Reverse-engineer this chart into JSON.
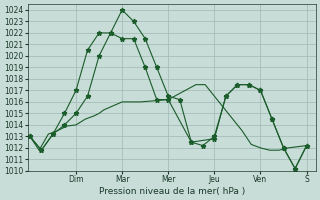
{
  "background_color": "#c8dcd8",
  "grid_color": "#a0b8b4",
  "line_color": "#1a5c2a",
  "ylim": [
    1010,
    1024.5
  ],
  "yticks": [
    1010,
    1011,
    1012,
    1013,
    1014,
    1015,
    1016,
    1017,
    1018,
    1019,
    1020,
    1021,
    1022,
    1023,
    1024
  ],
  "xlabel": "Pression niveau de la mer( hPa )",
  "day_labels": [
    "Dim",
    "Mar",
    "Mer",
    "Jeu",
    "Ven",
    "S"
  ],
  "day_positions": [
    1.0,
    2.0,
    3.0,
    4.0,
    5.0,
    6.0
  ],
  "series": [
    [
      1013.0,
      1011.8,
      1013.2,
      1013.0,
      1014.0,
      1015.0,
      1016.5,
      1017.5,
      1016.2,
      1012.5,
      1012.2,
      1013.0,
      1017.5,
      1017.5,
      1014.0,
      1012.0,
      1010.2,
      1010.2,
      1012.2
    ],
    [
      1013.0,
      1011.8,
      1013.2,
      1014.0,
      1015.0,
      1017.0,
      1020.0,
      1022.0,
      1021.5,
      1024.0,
      1023.0,
      1021.5,
      1019.0,
      1016.0,
      1012.5,
      1012.2,
      1013.0,
      1016.5,
      1017.5,
      1017.5,
      1014.5,
      1012.0,
      1010.2,
      1010.2,
      1012.2
    ],
    [
      1013.0,
      1011.8,
      1013.2,
      1014.0,
      1015.0,
      1017.0,
      1020.0,
      1022.0,
      1021.5,
      1024.0,
      1023.0,
      1021.5,
      1019.0,
      1016.0,
      1012.5,
      1012.2,
      1013.0,
      1016.5,
      1017.5,
      1017.5,
      1014.5,
      1012.0,
      1010.2,
      1010.2,
      1012.2
    ]
  ],
  "line1_x": [
    0.0,
    0.2,
    0.4,
    0.6,
    0.8,
    1.0,
    1.2,
    1.4,
    1.5,
    1.6,
    2.0,
    2.4,
    3.0,
    3.6,
    3.8,
    4.0,
    4.4,
    4.6,
    4.8,
    5.0,
    5.2,
    5.4,
    5.6,
    5.8,
    6.0
  ],
  "line1_y": [
    1013.0,
    1011.8,
    1013.2,
    1013.5,
    1013.9,
    1014.0,
    1014.5,
    1014.8,
    1015.0,
    1015.3,
    1016.0,
    1016.0,
    1016.2,
    1017.5,
    1017.5,
    1016.5,
    1014.5,
    1013.5,
    1012.3,
    1012.0,
    1011.8,
    1011.8,
    1012.0,
    1012.1,
    1012.2
  ],
  "line2_x": [
    0.0,
    0.25,
    0.5,
    0.75,
    1.0,
    1.25,
    1.5,
    1.75,
    2.0,
    2.25,
    2.5,
    2.75,
    3.0,
    3.25,
    3.5,
    3.75,
    4.0,
    4.25,
    4.5,
    4.75,
    5.0,
    5.25,
    5.5,
    5.75,
    6.0
  ],
  "line2_y": [
    1013.0,
    1011.8,
    1013.2,
    1014.0,
    1015.0,
    1016.5,
    1020.0,
    1022.0,
    1024.0,
    1023.0,
    1021.5,
    1019.0,
    1016.5,
    1016.2,
    1012.5,
    1012.2,
    1013.0,
    1016.5,
    1017.5,
    1017.5,
    1017.0,
    1014.5,
    1012.0,
    1010.2,
    1012.2
  ],
  "line3_x": [
    0.0,
    0.25,
    0.5,
    0.75,
    1.0,
    1.25,
    1.5,
    1.75,
    2.0,
    2.25,
    2.5,
    2.75,
    3.0,
    3.5,
    4.0,
    4.25,
    4.5,
    4.75,
    5.0,
    5.25,
    5.5,
    5.75,
    6.0
  ],
  "line3_y": [
    1013.0,
    1011.8,
    1013.2,
    1015.0,
    1017.0,
    1020.5,
    1022.0,
    1022.0,
    1021.5,
    1021.5,
    1019.0,
    1016.2,
    1016.2,
    1012.5,
    1012.8,
    1016.5,
    1017.5,
    1017.5,
    1017.0,
    1014.5,
    1012.0,
    1010.2,
    1012.2
  ]
}
